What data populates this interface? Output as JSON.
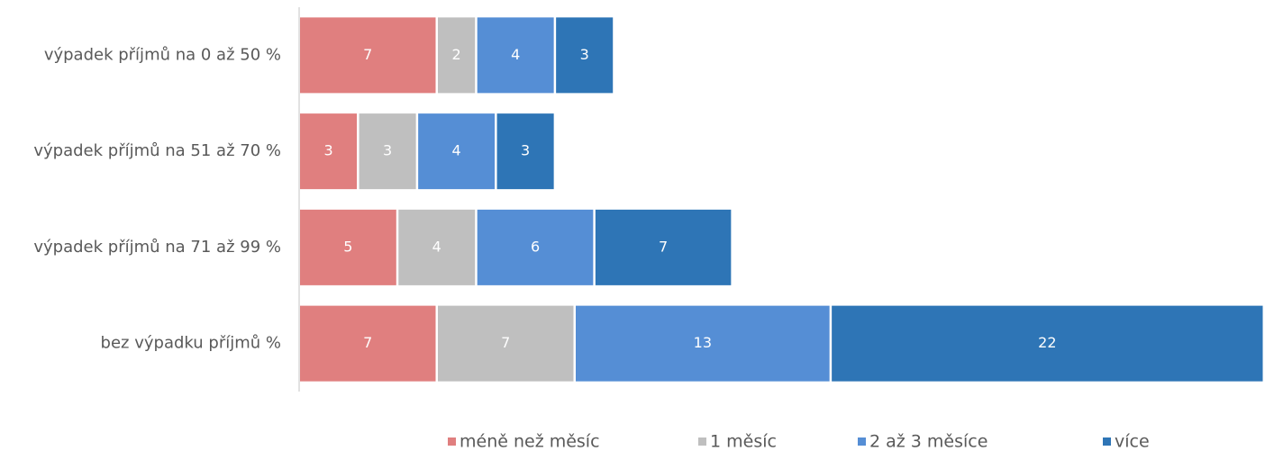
{
  "chart_data": {
    "type": "stacked-bar-horizontal",
    "categories": [
      "výpadek příjmů na 0 až 50 %",
      "výpadek příjmů na 51 až 70 %",
      "výpadek příjmů na 71 až 99 %",
      "bez výpadku příjmů %"
    ],
    "series": [
      {
        "name": "méně než měsíc",
        "color": "#e07f7f",
        "values": [
          7,
          3,
          5,
          7
        ]
      },
      {
        "name": "1 měsíc",
        "color": "#bfbfbf",
        "values": [
          2,
          3,
          4,
          7
        ]
      },
      {
        "name": "2 až 3 měsíce",
        "color": "#558ed5",
        "values": [
          4,
          4,
          6,
          13
        ]
      },
      {
        "name": "více",
        "color": "#2e75b6",
        "values": [
          3,
          3,
          7,
          22
        ]
      }
    ],
    "legend": "bottom"
  }
}
